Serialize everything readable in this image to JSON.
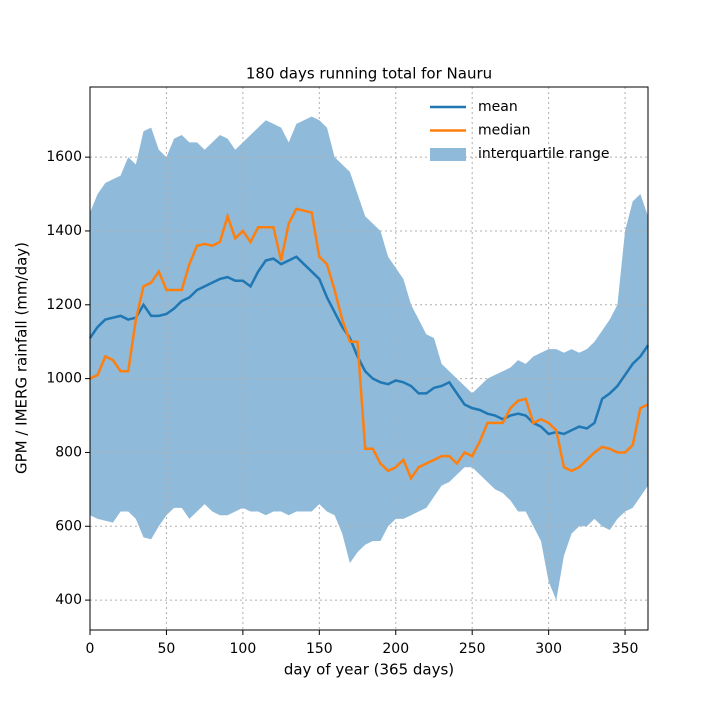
{
  "chart_data": {
    "type": "line",
    "title": "180 days running total for Nauru",
    "xlabel": "day of year (365 days)",
    "ylabel": "GPM / IMERG rainfall (mm/day)",
    "x": [
      0,
      5,
      10,
      15,
      20,
      25,
      30,
      35,
      40,
      45,
      50,
      55,
      60,
      65,
      70,
      75,
      80,
      85,
      90,
      95,
      100,
      105,
      110,
      115,
      120,
      125,
      130,
      135,
      140,
      145,
      150,
      155,
      160,
      165,
      170,
      175,
      180,
      185,
      190,
      195,
      200,
      205,
      210,
      215,
      220,
      225,
      230,
      235,
      240,
      245,
      250,
      255,
      260,
      265,
      270,
      275,
      280,
      285,
      290,
      295,
      300,
      305,
      310,
      315,
      320,
      325,
      330,
      335,
      340,
      345,
      350,
      355,
      360,
      365
    ],
    "series": [
      {
        "name": "mean",
        "color": "#1f77b4",
        "values": [
          1110,
          1140,
          1160,
          1165,
          1170,
          1160,
          1165,
          1200,
          1170,
          1170,
          1175,
          1190,
          1210,
          1220,
          1240,
          1250,
          1260,
          1270,
          1275,
          1265,
          1265,
          1250,
          1290,
          1320,
          1325,
          1310,
          1320,
          1330,
          1310,
          1290,
          1270,
          1220,
          1180,
          1140,
          1110,
          1060,
          1020,
          1000,
          990,
          985,
          995,
          990,
          980,
          960,
          960,
          975,
          980,
          990,
          960,
          930,
          920,
          915,
          905,
          900,
          890,
          900,
          905,
          900,
          880,
          870,
          850,
          855,
          850,
          860,
          870,
          865,
          880,
          945,
          960,
          980,
          1010,
          1040,
          1060,
          1090
        ]
      },
      {
        "name": "median",
        "color": "#ff7f0e",
        "values": [
          1000,
          1010,
          1060,
          1050,
          1020,
          1020,
          1160,
          1250,
          1260,
          1290,
          1240,
          1240,
          1240,
          1310,
          1360,
          1365,
          1360,
          1370,
          1440,
          1380,
          1400,
          1370,
          1410,
          1410,
          1410,
          1320,
          1420,
          1460,
          1455,
          1450,
          1330,
          1310,
          1240,
          1160,
          1100,
          1100,
          810,
          810,
          770,
          750,
          760,
          780,
          730,
          760,
          770,
          780,
          790,
          790,
          770,
          800,
          790,
          830,
          880,
          880,
          880,
          920,
          940,
          945,
          880,
          890,
          880,
          860,
          760,
          750,
          760,
          780,
          800,
          815,
          810,
          800,
          800,
          820,
          920,
          930
        ]
      }
    ],
    "band": {
      "name": "interquartile range",
      "color": "#8fbad9",
      "upper": [
        1450,
        1500,
        1530,
        1540,
        1550,
        1600,
        1580,
        1670,
        1680,
        1620,
        1600,
        1650,
        1660,
        1640,
        1640,
        1620,
        1640,
        1660,
        1650,
        1620,
        1640,
        1660,
        1680,
        1700,
        1690,
        1680,
        1640,
        1690,
        1700,
        1710,
        1700,
        1680,
        1600,
        1580,
        1560,
        1500,
        1440,
        1420,
        1400,
        1330,
        1300,
        1270,
        1200,
        1160,
        1120,
        1110,
        1040,
        1020,
        1000,
        980,
        960,
        980,
        1000,
        1010,
        1020,
        1030,
        1050,
        1040,
        1060,
        1070,
        1080,
        1080,
        1070,
        1080,
        1070,
        1080,
        1100,
        1130,
        1160,
        1200,
        1400,
        1480,
        1500,
        1440
      ],
      "lower": [
        630,
        620,
        615,
        610,
        640,
        640,
        620,
        570,
        565,
        600,
        630,
        650,
        650,
        620,
        640,
        660,
        640,
        630,
        630,
        640,
        650,
        640,
        640,
        630,
        640,
        640,
        630,
        640,
        640,
        640,
        660,
        640,
        630,
        580,
        500,
        530,
        550,
        560,
        560,
        600,
        620,
        620,
        630,
        640,
        650,
        680,
        710,
        720,
        740,
        760,
        760,
        740,
        720,
        700,
        690,
        670,
        640,
        640,
        600,
        560,
        450,
        400,
        520,
        580,
        600,
        600,
        620,
        600,
        590,
        620,
        640,
        650,
        680,
        710
      ]
    },
    "xlim": [
      0,
      365
    ],
    "ylim": [
      319,
      1790
    ],
    "xticks": [
      0,
      50,
      100,
      150,
      200,
      250,
      300,
      350
    ],
    "yticks": [
      400,
      600,
      800,
      1000,
      1200,
      1400,
      1600
    ],
    "grid": true,
    "legend": "upper right"
  }
}
